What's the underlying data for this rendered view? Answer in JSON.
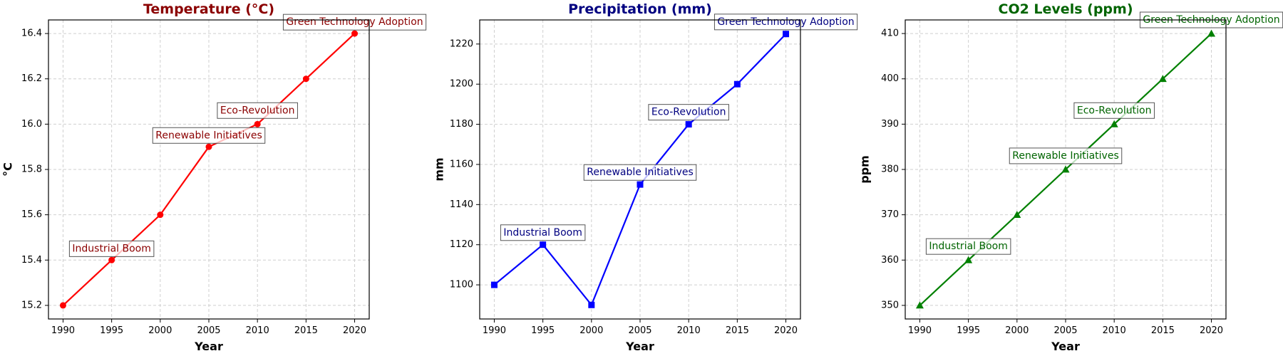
{
  "chart_data": [
    {
      "type": "line",
      "title": "Temperature (°C)",
      "xlabel": "Year",
      "ylabel": "°C",
      "color": "#ff0000",
      "title_color": "#8b0000",
      "annotation_color": "#8b0000",
      "marker": "circle",
      "x": [
        1990,
        1995,
        2000,
        2005,
        2010,
        2015,
        2020
      ],
      "values": [
        15.2,
        15.4,
        15.6,
        15.9,
        16.0,
        16.2,
        16.4
      ],
      "xticks": [
        1990,
        1995,
        2000,
        2005,
        2010,
        2015,
        2020
      ],
      "xtick_labels": [
        "1990",
        "1995",
        "2000",
        "2005",
        "2010",
        "2015",
        "2020"
      ],
      "yticks": [
        15.2,
        15.4,
        15.6,
        15.8,
        16.0,
        16.2,
        16.4
      ],
      "ytick_labels": [
        "15.2",
        "15.4",
        "15.6",
        "15.8",
        "16.0",
        "16.2",
        "16.4"
      ],
      "xlim": [
        1988.5,
        2021.5
      ],
      "ylim": [
        15.14,
        16.46
      ],
      "grid": true,
      "annotations": [
        {
          "x": 1995,
          "y": 15.45,
          "text": "Industrial Boom"
        },
        {
          "x": 2005,
          "y": 15.95,
          "text": "Renewable Initiatives"
        },
        {
          "x": 2010,
          "y": 16.06,
          "text": "Eco-Revolution"
        },
        {
          "x": 2020,
          "y": 16.45,
          "text": "Green Technology Adoption"
        }
      ]
    },
    {
      "type": "line",
      "title": "Precipitation (mm)",
      "xlabel": "Year",
      "ylabel": "mm",
      "color": "#0000ff",
      "title_color": "#000080",
      "annotation_color": "#000080",
      "marker": "square",
      "x": [
        1990,
        1995,
        2000,
        2005,
        2010,
        2015,
        2020
      ],
      "values": [
        1100,
        1120,
        1090,
        1150,
        1180,
        1200,
        1225
      ],
      "xticks": [
        1990,
        1995,
        2000,
        2005,
        2010,
        2015,
        2020
      ],
      "xtick_labels": [
        "1990",
        "1995",
        "2000",
        "2005",
        "2010",
        "2015",
        "2020"
      ],
      "yticks": [
        1100,
        1120,
        1140,
        1160,
        1180,
        1200,
        1220
      ],
      "ytick_labels": [
        "1100",
        "1120",
        "1140",
        "1160",
        "1180",
        "1200",
        "1220"
      ],
      "xlim": [
        1988.5,
        2021.5
      ],
      "ylim": [
        1083,
        1232
      ],
      "grid": true,
      "annotations": [
        {
          "x": 1995,
          "y": 1126,
          "text": "Industrial Boom"
        },
        {
          "x": 2005,
          "y": 1156,
          "text": "Renewable Initiatives"
        },
        {
          "x": 2010,
          "y": 1186,
          "text": "Eco-Revolution"
        },
        {
          "x": 2020,
          "y": 1231,
          "text": "Green Technology Adoption"
        }
      ]
    },
    {
      "type": "line",
      "title": "CO2 Levels (ppm)",
      "xlabel": "Year",
      "ylabel": "ppm",
      "color": "#008000",
      "title_color": "#006400",
      "annotation_color": "#006400",
      "marker": "triangle",
      "x": [
        1990,
        1995,
        2000,
        2005,
        2010,
        2015,
        2020
      ],
      "values": [
        350,
        360,
        370,
        380,
        390,
        400,
        410
      ],
      "xticks": [
        1990,
        1995,
        2000,
        2005,
        2010,
        2015,
        2020
      ],
      "xtick_labels": [
        "1990",
        "1995",
        "2000",
        "2005",
        "2010",
        "2015",
        "2020"
      ],
      "yticks": [
        350,
        360,
        370,
        380,
        390,
        400,
        410
      ],
      "ytick_labels": [
        "350",
        "360",
        "370",
        "380",
        "390",
        "400",
        "410"
      ],
      "xlim": [
        1988.5,
        2021.5
      ],
      "ylim": [
        347,
        413
      ],
      "grid": true,
      "annotations": [
        {
          "x": 1995,
          "y": 363,
          "text": "Industrial Boom"
        },
        {
          "x": 2005,
          "y": 383,
          "text": "Renewable Initiatives"
        },
        {
          "x": 2010,
          "y": 393,
          "text": "Eco-Revolution"
        },
        {
          "x": 2020,
          "y": 413,
          "text": "Green Technology Adoption"
        }
      ]
    }
  ]
}
